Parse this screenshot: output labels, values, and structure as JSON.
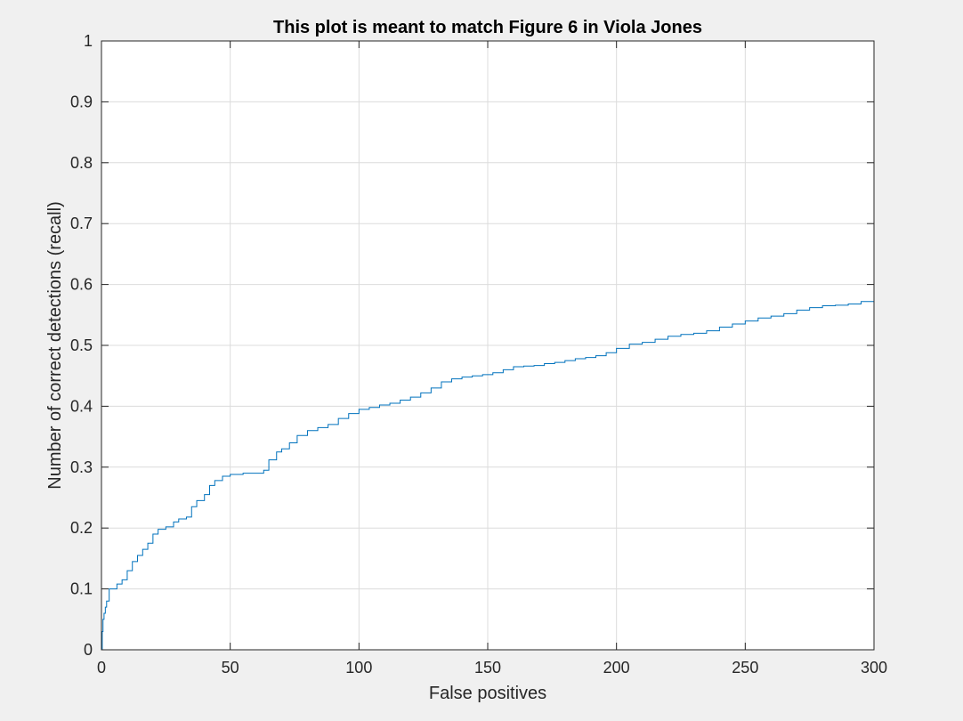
{
  "chart_data": {
    "type": "line",
    "step": true,
    "title": "This plot is meant to match Figure 6 in Viola Jones",
    "xlabel": "False positives",
    "ylabel": "Number of correct detections (recall)",
    "xlim": [
      0,
      300
    ],
    "ylim": [
      0,
      1
    ],
    "xticks": [
      "0",
      "50",
      "100",
      "150",
      "200",
      "250",
      "300"
    ],
    "yticks": [
      "0",
      "0.1",
      "0.2",
      "0.3",
      "0.4",
      "0.5",
      "0.6",
      "0.7",
      "0.8",
      "0.9",
      "1"
    ],
    "grid": true,
    "legend": "none",
    "series": [
      {
        "color": "#0072bd",
        "x": [
          0,
          0.3,
          0.6,
          1,
          1.5,
          2,
          3,
          4,
          6,
          8,
          10,
          12,
          14,
          16,
          18,
          20,
          22,
          25,
          28,
          30,
          33,
          35,
          37,
          40,
          42,
          44,
          47,
          50,
          55,
          60,
          63,
          65,
          68,
          70,
          73,
          76,
          80,
          84,
          88,
          92,
          96,
          100,
          104,
          108,
          112,
          116,
          120,
          124,
          128,
          132,
          136,
          140,
          144,
          148,
          152,
          156,
          160,
          164,
          168,
          172,
          176,
          180,
          184,
          188,
          192,
          196,
          200,
          205,
          210,
          215,
          220,
          225,
          230,
          235,
          240,
          245,
          250,
          255,
          260,
          265,
          270,
          275,
          280,
          285,
          290,
          295,
          300
        ],
        "y": [
          0,
          0.03,
          0.05,
          0.06,
          0.07,
          0.08,
          0.1,
          0.1,
          0.108,
          0.115,
          0.13,
          0.145,
          0.155,
          0.165,
          0.175,
          0.19,
          0.198,
          0.202,
          0.21,
          0.215,
          0.218,
          0.235,
          0.245,
          0.255,
          0.27,
          0.278,
          0.285,
          0.288,
          0.29,
          0.29,
          0.295,
          0.312,
          0.325,
          0.33,
          0.34,
          0.352,
          0.36,
          0.365,
          0.37,
          0.38,
          0.388,
          0.395,
          0.398,
          0.402,
          0.405,
          0.41,
          0.415,
          0.422,
          0.43,
          0.44,
          0.445,
          0.448,
          0.45,
          0.452,
          0.455,
          0.46,
          0.465,
          0.466,
          0.467,
          0.47,
          0.472,
          0.475,
          0.478,
          0.48,
          0.483,
          0.488,
          0.495,
          0.502,
          0.505,
          0.51,
          0.515,
          0.518,
          0.52,
          0.524,
          0.53,
          0.535,
          0.54,
          0.545,
          0.548,
          0.552,
          0.558,
          0.562,
          0.565,
          0.566,
          0.568,
          0.572,
          0.574
        ]
      }
    ]
  }
}
